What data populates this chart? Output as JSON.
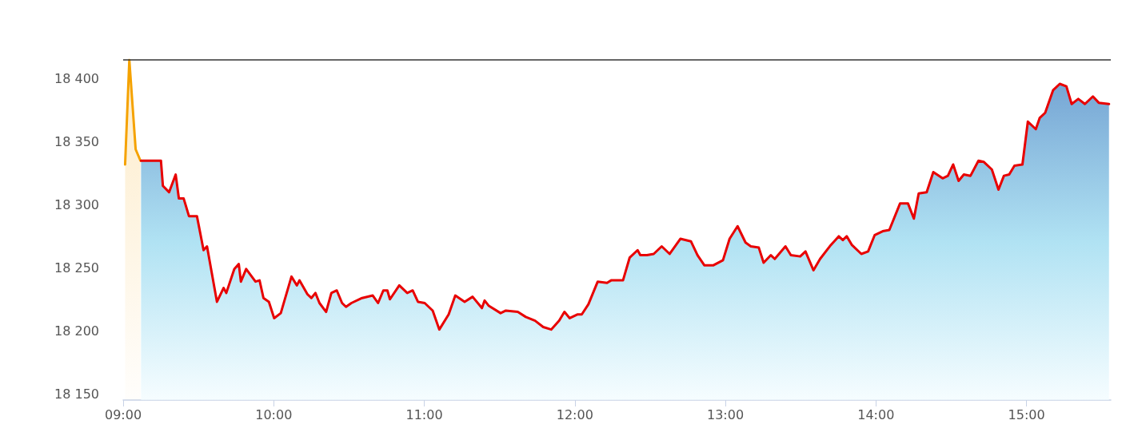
{
  "chart_data": {
    "type": "area",
    "xlim": [
      9,
      15.56
    ],
    "ylim": [
      18145,
      18415
    ],
    "xticks": [
      {
        "value": 9,
        "label": "09:00"
      },
      {
        "value": 10,
        "label": "10:00"
      },
      {
        "value": 11,
        "label": "11:00"
      },
      {
        "value": 12,
        "label": "12:00"
      },
      {
        "value": 13,
        "label": "13:00"
      },
      {
        "value": 14,
        "label": "14:00"
      },
      {
        "value": 15,
        "label": "15:00"
      }
    ],
    "yticks": [
      {
        "value": 18150,
        "label": "18 150"
      },
      {
        "value": 18200,
        "label": "18 200"
      },
      {
        "value": 18250,
        "label": "18 250"
      },
      {
        "value": 18300,
        "label": "18 300"
      },
      {
        "value": 18350,
        "label": "18 350"
      },
      {
        "value": 18400,
        "label": "18 400"
      }
    ],
    "grid": false,
    "marker": "none",
    "line_style": "solid",
    "ref_lines": [
      {
        "axis": "y",
        "value": 18415,
        "color": "#333333"
      }
    ],
    "series": [
      {
        "color": "#f5a200",
        "x": [
          9.013,
          9.041,
          9.083,
          9.115
        ],
        "values": [
          18332,
          18415,
          18344,
          18335
        ]
      },
      {
        "color": "#e80000",
        "x": [
          9.119,
          9.251,
          9.264,
          9.305,
          9.349,
          9.37,
          9.402,
          9.437,
          9.49,
          9.534,
          9.557,
          9.623,
          9.667,
          9.685,
          9.738,
          9.768,
          9.782,
          9.817,
          9.879,
          9.906,
          9.932,
          9.968,
          10.003,
          10.047,
          10.118,
          10.154,
          10.171,
          10.224,
          10.25,
          10.277,
          10.304,
          10.348,
          10.383,
          10.419,
          10.454,
          10.48,
          10.516,
          10.587,
          10.658,
          10.693,
          10.728,
          10.755,
          10.772,
          10.834,
          10.887,
          10.923,
          10.958,
          11.003,
          11.056,
          11.1,
          11.162,
          11.206,
          11.268,
          11.321,
          11.383,
          11.401,
          11.427,
          11.507,
          11.542,
          11.621,
          11.674,
          11.736,
          11.79,
          11.843,
          11.896,
          11.931,
          11.966,
          12.019,
          12.046,
          12.09,
          12.152,
          12.214,
          12.241,
          12.32,
          12.364,
          12.417,
          12.435,
          12.479,
          12.524,
          12.577,
          12.63,
          12.701,
          12.771,
          12.815,
          12.86,
          12.921,
          12.984,
          13.028,
          13.081,
          13.134,
          13.169,
          13.222,
          13.254,
          13.302,
          13.328,
          13.399,
          13.435,
          13.497,
          13.532,
          13.585,
          13.629,
          13.7,
          13.753,
          13.78,
          13.806,
          13.841,
          13.903,
          13.948,
          13.992,
          14.045,
          14.089,
          14.16,
          14.213,
          14.252,
          14.284,
          14.337,
          14.381,
          14.443,
          14.478,
          14.513,
          14.549,
          14.584,
          14.628,
          14.681,
          14.717,
          14.77,
          14.814,
          14.85,
          14.885,
          14.92,
          14.973,
          15.009,
          15.062,
          15.088,
          15.124,
          15.177,
          15.221,
          15.265,
          15.3,
          15.344,
          15.388,
          15.441,
          15.48,
          15.548
        ],
        "values": [
          18335,
          18335,
          18315,
          18310,
          18324,
          18305,
          18305,
          18291,
          18291,
          18264,
          18267,
          18223,
          18234,
          18230,
          18249,
          18253,
          18239,
          18249,
          18239,
          18240,
          18226,
          18223,
          18210,
          18214,
          18243,
          18236,
          18240,
          18229,
          18226,
          18230,
          18222,
          18215,
          18230,
          18232,
          18222,
          18219,
          18222,
          18226,
          18228,
          18222,
          18232,
          18232,
          18225,
          18236,
          18230,
          18232,
          18223,
          18222,
          18216,
          18201,
          18213,
          18228,
          18223,
          18227,
          18218,
          18224,
          18220,
          18214,
          18216,
          18215,
          18211,
          18208,
          18203,
          18201,
          18208,
          18215,
          18210,
          18213,
          18213,
          18221,
          18239,
          18238,
          18240,
          18240,
          18258,
          18264,
          18260,
          18260,
          18261,
          18267,
          18261,
          18273,
          18271,
          18260,
          18252,
          18252,
          18256,
          18273,
          18283,
          18270,
          18267,
          18266,
          18254,
          18260,
          18257,
          18267,
          18260,
          18259,
          18263,
          18248,
          18257,
          18268,
          18275,
          18272,
          18275,
          18268,
          18261,
          18263,
          18276,
          18279,
          18280,
          18301,
          18301,
          18289,
          18309,
          18310,
          18326,
          18321,
          18323,
          18332,
          18319,
          18324,
          18323,
          18335,
          18334,
          18328,
          18312,
          18323,
          18324,
          18331,
          18332,
          18366,
          18360,
          18369,
          18373,
          18391,
          18396,
          18394,
          18380,
          18384,
          18380,
          18386,
          18381,
          18380
        ]
      }
    ]
  }
}
